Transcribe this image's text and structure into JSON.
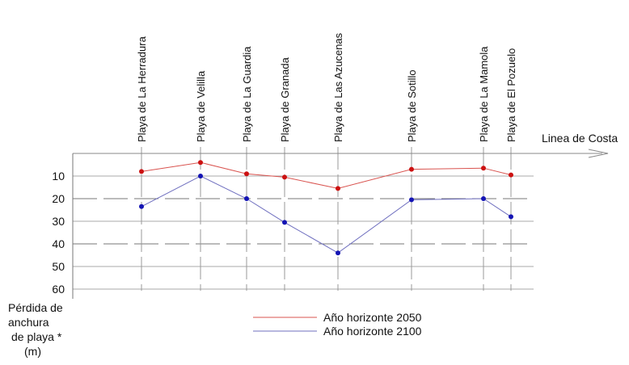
{
  "chart_data": {
    "type": "line",
    "categories": [
      "Playa de La Herradura",
      "Playa de Velilla",
      "Playa de La Guardia",
      "Playa de Granada",
      "Playa de Las Azucenas",
      "Playa de Sotillo",
      "Playa de La Mamola",
      "Playa de El Pozuelo"
    ],
    "series": [
      {
        "name": "Año horizonte 2050",
        "color": "#d9534f",
        "marker_color": "#cc1111",
        "values": [
          8,
          4,
          9,
          10.5,
          15.5,
          7,
          6.5,
          9.5
        ]
      },
      {
        "name": "Año horizonte 2100",
        "color": "#6f6fbf",
        "marker_color": "#1414b4",
        "values": [
          23.5,
          10,
          20,
          30.5,
          44,
          20.5,
          20,
          28
        ]
      }
    ],
    "xlabel": "Linea de Costa",
    "ylabel": "Pérdida de anchura de playa * (m)",
    "yticks": [
      10,
      20,
      30,
      40,
      50,
      60
    ],
    "ylim": [
      0,
      60
    ],
    "y_inverted": true,
    "grid": true,
    "legend_position": "bottom-center"
  }
}
